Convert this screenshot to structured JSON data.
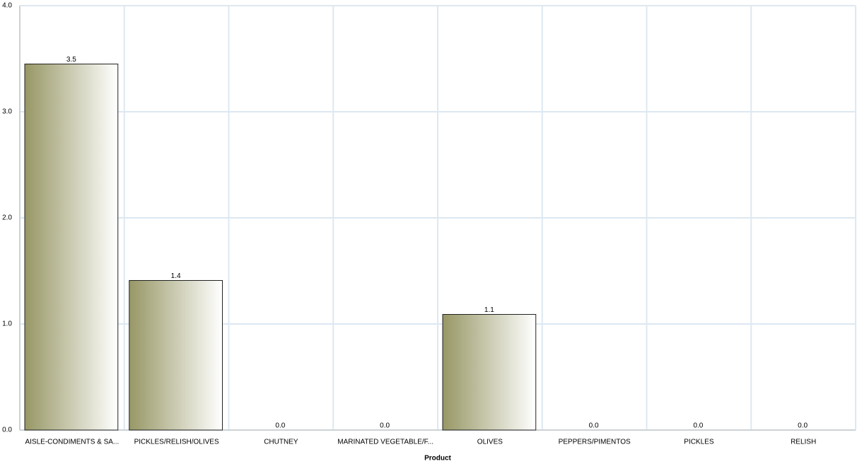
{
  "chart_data": {
    "type": "bar",
    "x_label": "Product",
    "categories": [
      "AISLE-CONDIMENTS & SA...",
      "PICKLES/RELISH/OLIVES",
      "CHUTNEY",
      "MARINATED VEGETABLE/F...",
      "OLIVES",
      "PEPPERS/PIMENTOS",
      "PICKLES",
      "RELISH"
    ],
    "values": [
      3.45,
      1.41,
      0,
      0,
      1.09,
      0,
      0,
      0
    ],
    "value_labels": [
      "3.5",
      "1.4",
      "0.0",
      "0.0",
      "1.1",
      "0.0",
      "0.0",
      "0.0"
    ],
    "color": "#979766",
    "ylim": [
      0,
      4
    ],
    "yticks": [
      {
        "value": 0,
        "label": "0.0"
      },
      {
        "value": 1,
        "label": "1.0"
      },
      {
        "value": 2,
        "label": "2.0"
      },
      {
        "value": 3,
        "label": "3.0"
      },
      {
        "value": 4,
        "label": "4.0"
      }
    ],
    "grid": true
  }
}
